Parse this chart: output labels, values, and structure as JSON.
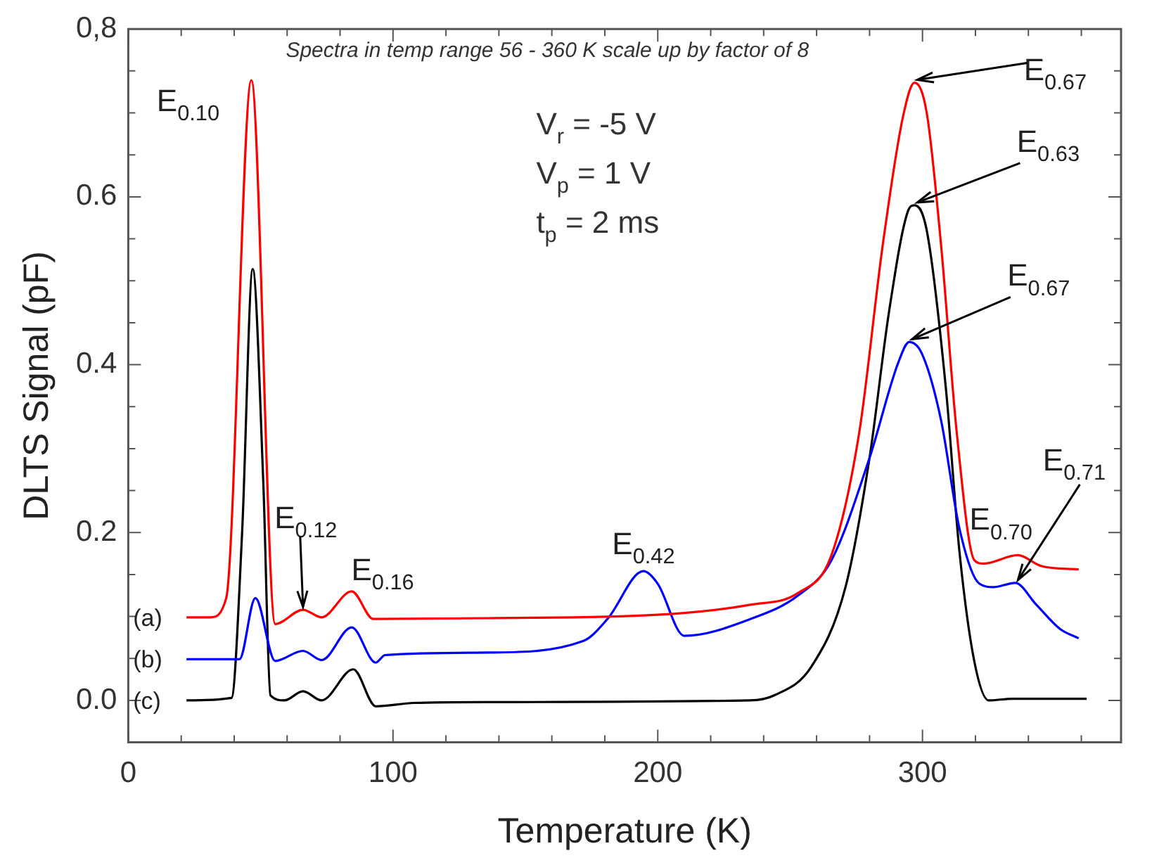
{
  "chart_data": {
    "type": "line",
    "xlabel": "Temperature (K)",
    "ylabel": "DLTS Signal (pF)",
    "xlim": [
      0,
      375
    ],
    "ylim": [
      -0.05,
      0.8
    ],
    "xticks": [
      0,
      {
        "value": 20,
        "label": null
      },
      {
        "value": 40,
        "label": null
      },
      {
        "value": 60,
        "label": null
      },
      {
        "value": 80,
        "label": null
      },
      100,
      {
        "value": 120,
        "label": null
      },
      {
        "value": 140,
        "label": null
      },
      {
        "value": 160,
        "label": null
      },
      {
        "value": 180,
        "label": null
      },
      200,
      {
        "value": 220,
        "label": null
      },
      {
        "value": 240,
        "label": null
      },
      {
        "value": 260,
        "label": null
      },
      {
        "value": 280,
        "label": null
      },
      300,
      {
        "value": 320,
        "label": null
      },
      {
        "value": 340,
        "label": null
      },
      {
        "value": 360,
        "label": null
      }
    ],
    "yticks": [
      {
        "value": -0.05,
        "label": null
      },
      {
        "value": 0,
        "label": "0.0"
      },
      {
        "value": 0.05,
        "label": null
      },
      {
        "value": 0.1,
        "label": null
      },
      {
        "value": 0.15,
        "label": null
      },
      {
        "value": 0.2,
        "label": "0.2"
      },
      {
        "value": 0.25,
        "label": null
      },
      {
        "value": 0.3,
        "label": null
      },
      {
        "value": 0.35,
        "label": null
      },
      {
        "value": 0.4,
        "label": "0.4"
      },
      {
        "value": 0.45,
        "label": null
      },
      {
        "value": 0.5,
        "label": null
      },
      {
        "value": 0.55,
        "label": null
      },
      {
        "value": 0.6,
        "label": "0.6"
      },
      {
        "value": 0.65,
        "label": null
      },
      {
        "value": 0.7,
        "label": null
      },
      {
        "value": 0.75,
        "label": null
      },
      {
        "value": 0.8,
        "label": "0,8"
      }
    ],
    "grid": false,
    "legend": false,
    "marker": "none",
    "line_style": "solid",
    "series": [
      {
        "name": "(a)",
        "color": "#ff0000",
        "x": [
          22,
          31,
          37,
          46.5,
          55.5,
          66,
          73,
          84.4,
          92.6,
          136,
          200,
          235,
          253,
          265.6,
          276,
          285,
          292.6,
          297,
          301.6,
          307,
          313,
          319.6,
          323,
          336,
          345,
          359
        ],
        "values": [
          0.099,
          0.099,
          0.122,
          0.739,
          0.091,
          0.108,
          0.099,
          0.13,
          0.097,
          0.098,
          0.102,
          0.114,
          0.128,
          0.173,
          0.317,
          0.543,
          0.695,
          0.736,
          0.7,
          0.543,
          0.317,
          0.167,
          0.163,
          0.173,
          0.16,
          0.156
        ]
      },
      {
        "name": "(b)",
        "color": "#0000ff",
        "x": [
          22,
          42,
          48,
          55.5,
          66,
          73,
          84.4,
          93.5,
          97,
          136,
          172,
          181,
          194.6,
          200,
          210,
          235,
          253,
          265.6,
          280,
          290.8,
          295,
          299.8,
          307,
          314,
          321.5,
          327,
          335,
          343,
          352,
          359
        ],
        "values": [
          0.049,
          0.049,
          0.122,
          0.047,
          0.059,
          0.048,
          0.087,
          0.045,
          0.054,
          0.057,
          0.071,
          0.097,
          0.154,
          0.139,
          0.077,
          0.097,
          0.125,
          0.167,
          0.289,
          0.402,
          0.427,
          0.413,
          0.334,
          0.204,
          0.139,
          0.135,
          0.14,
          0.114,
          0.085,
          0.074
        ]
      },
      {
        "name": "(c)",
        "color": "#000000",
        "x": [
          22,
          39,
          43,
          47,
          51,
          53.7,
          59,
          66,
          73,
          85,
          93.5,
          108,
          136,
          235,
          244,
          258,
          271,
          280,
          287.4,
          294.4,
          297,
          301.6,
          308.8,
          314,
          319.6,
          325,
          334,
          362
        ],
        "values": [
          0,
          0.003,
          0.2,
          0.514,
          0.26,
          0.006,
          0,
          0.011,
          0,
          0.037,
          -0.007,
          -0.003,
          -0.002,
          0,
          0.006,
          0.04,
          0.136,
          0.289,
          0.464,
          0.582,
          0.59,
          0.56,
          0.373,
          0.176,
          0.046,
          0,
          0.002,
          0.002
        ]
      }
    ],
    "annotations": [
      "Spectra in temp range 56 - 360 K scale up by factor of 8",
      "V$_{r}$ = -5 V",
      "V$_{p}$ = 1 V",
      "t$_{p}$ = 2 ms",
      {
        "text": "E$_{0.10}$",
        "x": 46.5,
        "y": 0.739
      },
      {
        "text": "E$_{0.12}$",
        "x": 66,
        "y": 0.108
      },
      {
        "text": "E$_{0.16}$",
        "x": 84.4,
        "y": 0.13
      },
      {
        "text": "E$_{0.42}$",
        "x": 194.6,
        "y": 0.154
      },
      {
        "text": "E$_{0.67}$",
        "x": 297,
        "y": 0.736
      },
      {
        "text": "E$_{0.63}$",
        "x": 297,
        "y": 0.59
      },
      {
        "text": "E$_{0.67}$",
        "x": 295,
        "y": 0.427
      },
      {
        "text": "E$_{0.70}$",
        "x": 336,
        "y": 0.173
      },
      {
        "text": "E$_{0.71}$",
        "x": 335,
        "y": 0.14
      }
    ]
  }
}
